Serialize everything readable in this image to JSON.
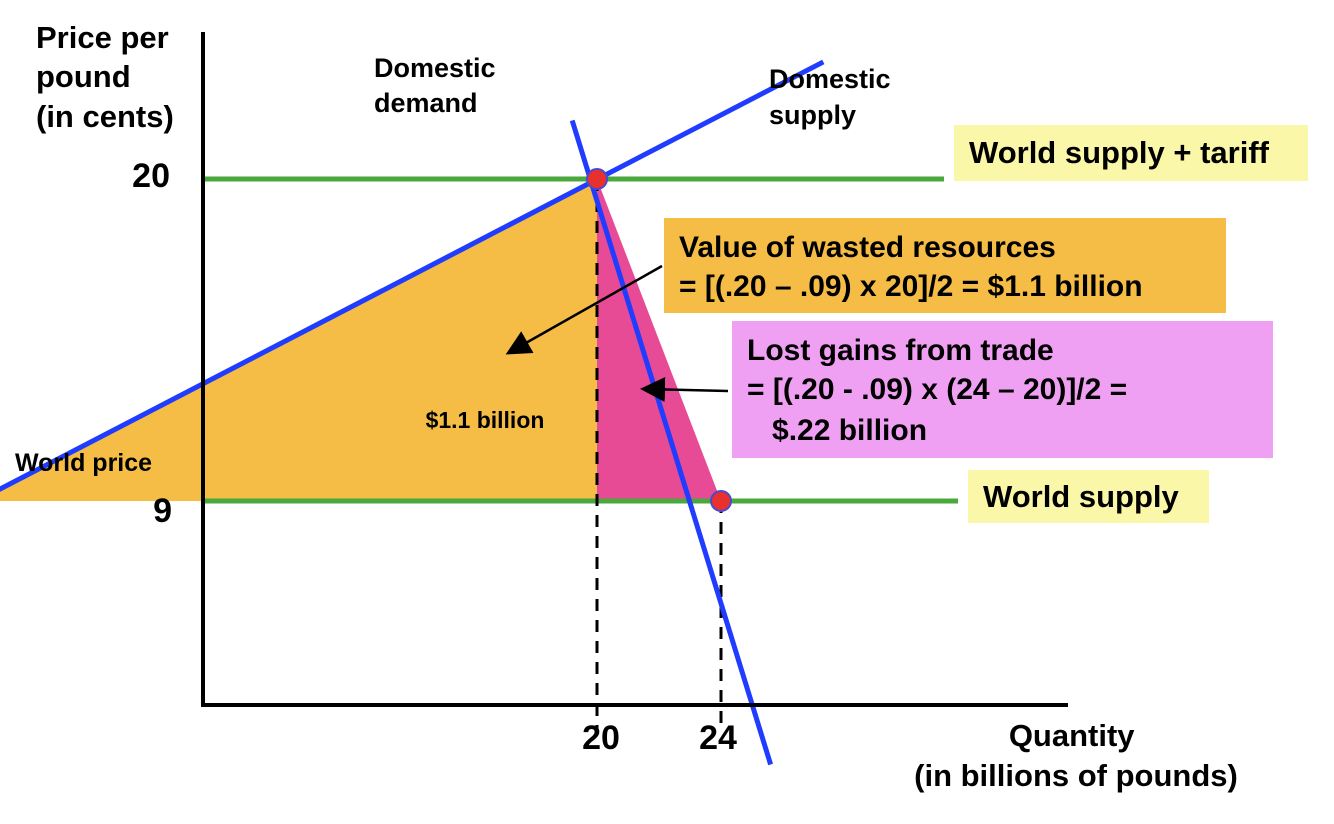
{
  "chart_data": {
    "type": "line",
    "title": "",
    "ylabel": [
      "Price per",
      "pound",
      "(in cents)"
    ],
    "xlabel": [
      "Quantity",
      "(in billions of pounds)"
    ],
    "xlim": [
      0,
      28
    ],
    "ylim": [
      0,
      20
    ],
    "x_ticks": [
      "20",
      "24"
    ],
    "y_ticks": [
      "20",
      "9"
    ],
    "y_tick_note": "World price",
    "series": [
      {
        "name": "Domestic demand",
        "label": [
          "Domestic",
          "demand"
        ],
        "points": [
          [
            19.2,
            22.0
          ],
          [
            25.6,
            0
          ]
        ],
        "color": "#1f3cff"
      },
      {
        "name": "Domestic supply",
        "label": [
          "Domestic",
          "supply"
        ],
        "points": [
          [
            0,
            9
          ],
          [
            27.3,
            24.0
          ]
        ],
        "color": "#1f3cff"
      },
      {
        "name": "World supply + tariff",
        "label": [
          "World supply + tariff"
        ],
        "price": 20,
        "color": "#4aa83c"
      },
      {
        "name": "World supply",
        "label": [
          "World supply"
        ],
        "price": 9,
        "color": "#4aa83c"
      }
    ],
    "intersections": [
      {
        "x": 20,
        "y": 20
      },
      {
        "x": 24,
        "y": 9
      }
    ],
    "areas": [
      {
        "name": "wasted-resources-area",
        "label": "$1.1 billion",
        "value_billion": 1.1,
        "vertices": [
          [
            0,
            9
          ],
          [
            20,
            20
          ],
          [
            20,
            9
          ]
        ],
        "color": "#f5bd45"
      },
      {
        "name": "lost-gains-area",
        "label": "",
        "value_billion": 0.22,
        "vertices": [
          [
            20,
            9
          ],
          [
            20,
            20
          ],
          [
            24,
            9
          ]
        ],
        "color": "#e84b96"
      }
    ],
    "annotations": [
      {
        "name": "wasted-resources-annotation",
        "lines": [
          "Value of wasted resources",
          "= [(.20 – .09) x 20]/2 = $1.1 billion"
        ],
        "bg": "#f5bd45"
      },
      {
        "name": "lost-gains-annotation",
        "lines": [
          "Lost gains from trade",
          "= [(.20 - .09) x (24 – 20)]/2 =",
          "   $.22 billion"
        ],
        "bg": "#f0a0f2"
      }
    ],
    "label_bg": "#fbf7a8"
  }
}
